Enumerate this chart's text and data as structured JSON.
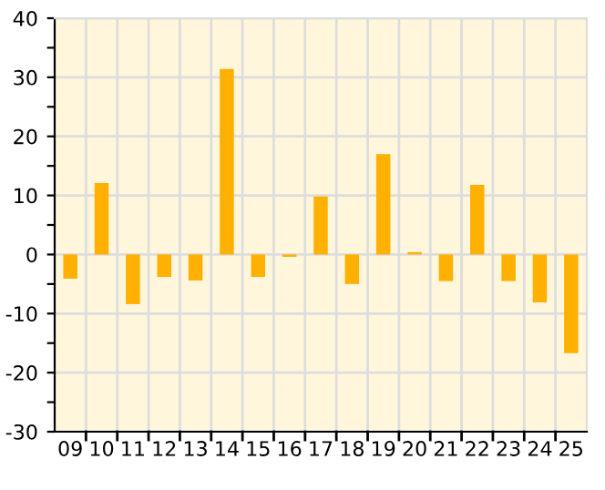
{
  "chart_data": {
    "type": "bar",
    "categories": [
      "09",
      "10",
      "11",
      "12",
      "13",
      "14",
      "15",
      "16",
      "17",
      "18",
      "19",
      "20",
      "21",
      "22",
      "23",
      "24",
      "25"
    ],
    "values": [
      -4.1,
      12.1,
      -8.4,
      -3.8,
      -4.4,
      31.4,
      -3.8,
      -0.4,
      9.8,
      -5.0,
      17.0,
      0.4,
      -4.5,
      11.8,
      -4.5,
      -8.1,
      -16.7
    ],
    "color": "#ffb000",
    "ylim": [
      -30,
      40
    ],
    "yticks": [
      -30,
      {
        "value": -25,
        "label": null
      },
      -20,
      {
        "value": -15,
        "label": null
      },
      -10,
      {
        "value": -5,
        "label": null
      },
      0,
      {
        "value": 5,
        "label": null
      },
      10,
      {
        "value": 15,
        "label": null
      },
      20,
      {
        "value": 25,
        "label": null
      },
      30,
      {
        "value": 35,
        "label": null
      },
      40
    ],
    "grid": true
  }
}
